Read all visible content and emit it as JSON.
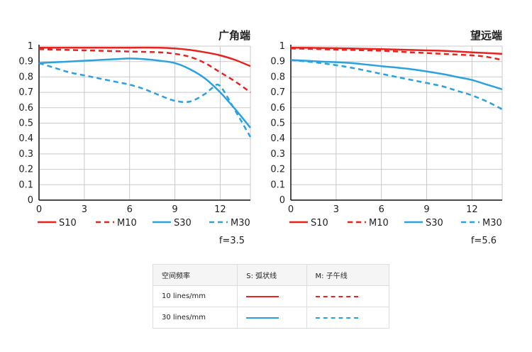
{
  "chart_data": [
    {
      "type": "line",
      "title": "广角端",
      "xlim": [
        0,
        14
      ],
      "ylim": [
        0,
        1
      ],
      "xticks": [
        "0",
        "3",
        "6",
        "9",
        "12"
      ],
      "yticks": [
        "0",
        "0.1",
        "0.2",
        "0.3",
        "0.4",
        "0.5",
        "0.6",
        "0.7",
        "0.8",
        "0.9",
        "1"
      ],
      "f_label": "f=3.5",
      "series": [
        {
          "name": "S10",
          "color": "#e8231f",
          "dash": false,
          "x": [
            0,
            2,
            4,
            6,
            8,
            9,
            10,
            11,
            12,
            13,
            14
          ],
          "y": [
            0.99,
            0.99,
            0.99,
            0.99,
            0.99,
            0.985,
            0.975,
            0.96,
            0.94,
            0.91,
            0.87
          ]
        },
        {
          "name": "M10",
          "color": "#e8231f",
          "dash": true,
          "x": [
            0,
            2,
            4,
            6,
            8,
            9,
            10,
            11,
            12,
            13,
            14
          ],
          "y": [
            0.98,
            0.975,
            0.97,
            0.965,
            0.96,
            0.95,
            0.93,
            0.89,
            0.83,
            0.77,
            0.7
          ]
        },
        {
          "name": "S30",
          "color": "#2aa1e0",
          "dash": false,
          "x": [
            0,
            1,
            2,
            3,
            4,
            5,
            6,
            7,
            8,
            9,
            10,
            11,
            12,
            13,
            14
          ],
          "y": [
            0.89,
            0.895,
            0.9,
            0.905,
            0.91,
            0.915,
            0.92,
            0.915,
            0.905,
            0.89,
            0.85,
            0.79,
            0.7,
            0.59,
            0.47
          ]
        },
        {
          "name": "M30",
          "color": "#2aa1e0",
          "dash": true,
          "x": [
            0,
            1,
            2,
            3,
            4,
            5,
            6,
            7,
            8,
            9,
            10,
            11,
            11.5,
            12,
            13,
            14
          ],
          "y": [
            0.89,
            0.86,
            0.83,
            0.81,
            0.79,
            0.77,
            0.75,
            0.72,
            0.68,
            0.645,
            0.64,
            0.69,
            0.73,
            0.74,
            0.58,
            0.41
          ]
        }
      ]
    },
    {
      "type": "line",
      "title": "望远端",
      "xlim": [
        0,
        14
      ],
      "ylim": [
        0,
        1
      ],
      "xticks": [
        "0",
        "3",
        "6",
        "9",
        "12"
      ],
      "yticks": [
        "0",
        "0.1",
        "0.2",
        "0.3",
        "0.4",
        "0.5",
        "0.6",
        "0.7",
        "0.8",
        "0.9",
        "1"
      ],
      "f_label": "f=5.6",
      "series": [
        {
          "name": "S10",
          "color": "#e8231f",
          "dash": false,
          "x": [
            0,
            2,
            4,
            6,
            8,
            10,
            12,
            14
          ],
          "y": [
            0.99,
            0.988,
            0.985,
            0.98,
            0.975,
            0.97,
            0.96,
            0.95
          ]
        },
        {
          "name": "M10",
          "color": "#e8231f",
          "dash": true,
          "x": [
            0,
            2,
            4,
            6,
            8,
            10,
            12,
            13,
            14
          ],
          "y": [
            0.985,
            0.98,
            0.975,
            0.97,
            0.96,
            0.95,
            0.94,
            0.93,
            0.91
          ]
        },
        {
          "name": "S30",
          "color": "#2aa1e0",
          "dash": false,
          "x": [
            0,
            2,
            4,
            6,
            8,
            10,
            11,
            12,
            13,
            14
          ],
          "y": [
            0.91,
            0.9,
            0.89,
            0.87,
            0.85,
            0.82,
            0.8,
            0.78,
            0.75,
            0.72
          ]
        },
        {
          "name": "M30",
          "color": "#2aa1e0",
          "dash": true,
          "x": [
            0,
            2,
            4,
            6,
            8,
            10,
            11,
            12,
            13,
            14
          ],
          "y": [
            0.91,
            0.89,
            0.86,
            0.82,
            0.78,
            0.74,
            0.71,
            0.68,
            0.64,
            0.59
          ]
        }
      ]
    }
  ],
  "legend_table": {
    "header": [
      "空间频率",
      "S: 弧状线",
      "M: 子午线"
    ],
    "rows": [
      {
        "label": "10 lines/mm",
        "color": "#e8231f"
      },
      {
        "label": "30 lines/mm",
        "color": "#2aa1e0"
      }
    ]
  }
}
